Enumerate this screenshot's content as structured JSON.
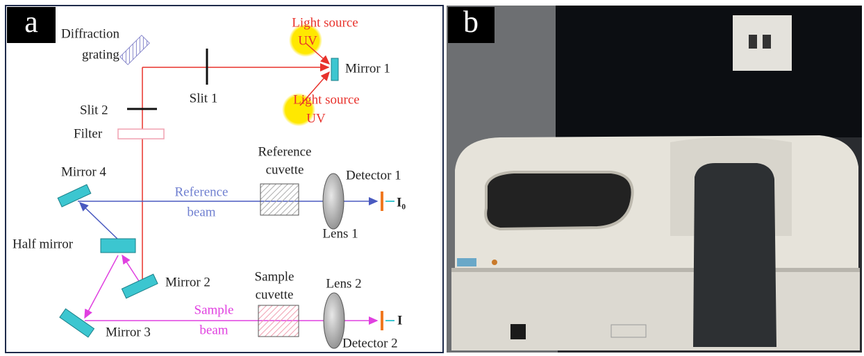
{
  "panel_a": {
    "label": "a",
    "labels": {
      "diffraction_grating": [
        "Diffraction",
        "grating"
      ],
      "light_source_top": [
        "Light source",
        "UV"
      ],
      "mirror_1": "Mirror 1",
      "slit_1": "Slit 1",
      "light_source_bottom": [
        "Light source",
        "UV"
      ],
      "slit_2": "Slit 2",
      "filter": "Filter",
      "reference_cuvette": [
        "Reference",
        "cuvette"
      ],
      "mirror_4": "Mirror 4",
      "detector_1": "Detector 1",
      "reference_beam": [
        "Reference",
        "beam"
      ],
      "i0": "I₀",
      "lens_1": "Lens 1",
      "half_mirror": "Half mirror",
      "mirror_2": "Mirror 2",
      "sample_cuvette": [
        "Sample",
        "cuvette"
      ],
      "lens_2": "Lens 2",
      "sample_beam": [
        "Sample",
        "beam"
      ],
      "mirror_3": "Mirror 3",
      "i": "I",
      "detector_2": "Detector 2"
    }
  },
  "panel_b": {
    "label": "b"
  }
}
